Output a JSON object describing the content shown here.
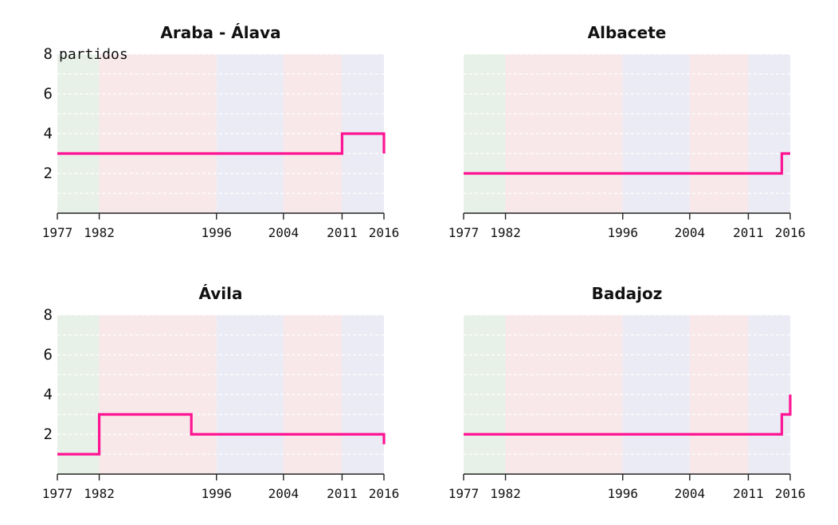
{
  "chart_data": [
    {
      "type": "line",
      "title": "Araba - Álava",
      "ylabel": "partidos",
      "y_ticks": [
        "2",
        "4",
        "6",
        "8"
      ],
      "x_ticks": [
        "1977",
        "1982",
        "1996",
        "2004",
        "2011",
        "2016"
      ],
      "ylim": [
        0,
        8
      ],
      "xlim": [
        1977,
        2016
      ],
      "step_x": [
        1977,
        2011,
        2016
      ],
      "step_y": [
        3,
        4,
        3
      ]
    },
    {
      "type": "line",
      "title": "Albacete",
      "y_ticks": [],
      "x_ticks": [
        "1977",
        "1982",
        "1996",
        "2004",
        "2011",
        "2016"
      ],
      "ylim": [
        0,
        8
      ],
      "xlim": [
        1977,
        2016
      ],
      "step_x": [
        1977,
        2015,
        2016
      ],
      "step_y": [
        2,
        3,
        3
      ]
    },
    {
      "type": "line",
      "title": "Ávila",
      "y_ticks": [
        "2",
        "4",
        "6",
        "8"
      ],
      "x_ticks": [
        "1977",
        "1982",
        "1996",
        "2004",
        "2011",
        "2016"
      ],
      "ylim": [
        0,
        8
      ],
      "xlim": [
        1977,
        2016
      ],
      "step_x": [
        1977,
        1982,
        1993,
        2016
      ],
      "step_y": [
        1,
        3,
        2,
        1.5
      ]
    },
    {
      "type": "line",
      "title": "Badajoz",
      "y_ticks": [],
      "x_ticks": [
        "1977",
        "1982",
        "1996",
        "2004",
        "2011",
        "2016"
      ],
      "ylim": [
        0,
        8
      ],
      "xlim": [
        1977,
        2016
      ],
      "step_x": [
        1977,
        2015,
        2016
      ],
      "step_y": [
        2,
        3,
        4
      ]
    }
  ],
  "bands": [
    {
      "from": 1977,
      "to": 1982,
      "color": "#e8f1e8"
    },
    {
      "from": 1982,
      "to": 1996,
      "color": "#f8e8ea"
    },
    {
      "from": 1996,
      "to": 2004,
      "color": "#eaebf4"
    },
    {
      "from": 2004,
      "to": 2011,
      "color": "#f8e8ea"
    },
    {
      "from": 2011,
      "to": 2016,
      "color": "#eaebf4"
    }
  ],
  "colors": {
    "line": "#ff1493",
    "grid": "#ffffff",
    "axis": "#222222"
  }
}
